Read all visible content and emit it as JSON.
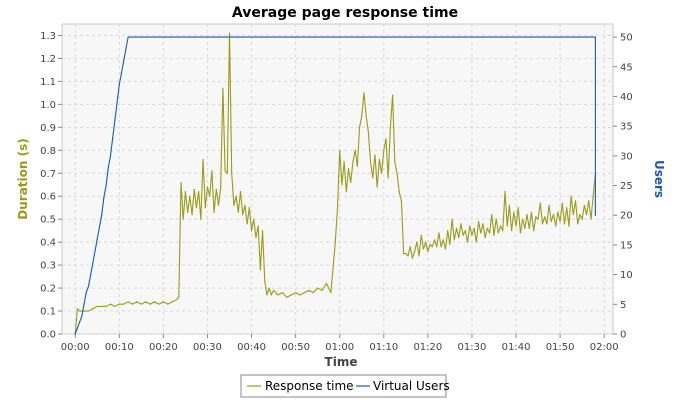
{
  "chart_data": {
    "type": "line",
    "title": "Average page response time",
    "xlabel": "Time",
    "ylabel": "Duration (s)",
    "y2label": "Users",
    "x_ticks": [
      "00:00",
      "00:10",
      "00:20",
      "00:30",
      "00:40",
      "00:50",
      "01:00",
      "01:10",
      "01:20",
      "01:30",
      "01:40",
      "01:50",
      "02:00"
    ],
    "xlim_minutes": [
      -3,
      122
    ],
    "ylim": [
      0,
      1.35
    ],
    "y_ticks": [
      "0.0",
      "0.1",
      "0.2",
      "0.3",
      "0.4",
      "0.5",
      "0.6",
      "0.7",
      "0.8",
      "0.9",
      "1.0",
      "1.1",
      "1.2",
      "1.3"
    ],
    "y2lim": [
      0,
      52.2
    ],
    "y2_ticks": [
      "0",
      "5",
      "10",
      "15",
      "20",
      "25",
      "30",
      "35",
      "40",
      "45",
      "50"
    ],
    "grid": true,
    "legend_position": "bottom",
    "series": [
      {
        "name": "Response time",
        "axis": "left",
        "color": "#9a9a1a",
        "points": [
          [
            0.0,
            0.0
          ],
          [
            0.5,
            0.11
          ],
          [
            1,
            0.1
          ],
          [
            2,
            0.1
          ],
          [
            3,
            0.1
          ],
          [
            4,
            0.11
          ],
          [
            5,
            0.12
          ],
          [
            6,
            0.12
          ],
          [
            7,
            0.12
          ],
          [
            8,
            0.13
          ],
          [
            9,
            0.12
          ],
          [
            10,
            0.13
          ],
          [
            11,
            0.13
          ],
          [
            12,
            0.14
          ],
          [
            13,
            0.13
          ],
          [
            14,
            0.14
          ],
          [
            15,
            0.13
          ],
          [
            16,
            0.14
          ],
          [
            17,
            0.13
          ],
          [
            18,
            0.14
          ],
          [
            19,
            0.13
          ],
          [
            20,
            0.14
          ],
          [
            21,
            0.13
          ],
          [
            22,
            0.14
          ],
          [
            23,
            0.15
          ],
          [
            23.5,
            0.16
          ],
          [
            24,
            0.66
          ],
          [
            24.5,
            0.5
          ],
          [
            25,
            0.62
          ],
          [
            25.5,
            0.53
          ],
          [
            26,
            0.6
          ],
          [
            26.5,
            0.52
          ],
          [
            27,
            0.63
          ],
          [
            27.5,
            0.55
          ],
          [
            28,
            0.62
          ],
          [
            28.5,
            0.5
          ],
          [
            29,
            0.76
          ],
          [
            29.5,
            0.55
          ],
          [
            30,
            0.64
          ],
          [
            30.5,
            0.6
          ],
          [
            31,
            0.71
          ],
          [
            31.5,
            0.53
          ],
          [
            32,
            0.63
          ],
          [
            32.5,
            0.56
          ],
          [
            33,
            0.64
          ],
          [
            33.5,
            1.07
          ],
          [
            34,
            0.71
          ],
          [
            34.5,
            0.7
          ],
          [
            35,
            1.31
          ],
          [
            35.5,
            0.7
          ],
          [
            36,
            0.56
          ],
          [
            36.5,
            0.6
          ],
          [
            37,
            0.53
          ],
          [
            37.5,
            0.62
          ],
          [
            38,
            0.52
          ],
          [
            38.5,
            0.56
          ],
          [
            39,
            0.48
          ],
          [
            39.5,
            0.55
          ],
          [
            40,
            0.45
          ],
          [
            40.5,
            0.5
          ],
          [
            41,
            0.42
          ],
          [
            41.5,
            0.47
          ],
          [
            42,
            0.28
          ],
          [
            42.5,
            0.45
          ],
          [
            43,
            0.23
          ],
          [
            43.5,
            0.17
          ],
          [
            44,
            0.2
          ],
          [
            44.5,
            0.17
          ],
          [
            45,
            0.19
          ],
          [
            46,
            0.17
          ],
          [
            47,
            0.18
          ],
          [
            48,
            0.16
          ],
          [
            49,
            0.17
          ],
          [
            50,
            0.18
          ],
          [
            51,
            0.17
          ],
          [
            52,
            0.18
          ],
          [
            53,
            0.19
          ],
          [
            54,
            0.18
          ],
          [
            55,
            0.2
          ],
          [
            56,
            0.19
          ],
          [
            57,
            0.22
          ],
          [
            57.5,
            0.2
          ],
          [
            58,
            0.18
          ],
          [
            59,
            0.4
          ],
          [
            59.5,
            0.55
          ],
          [
            60,
            0.8
          ],
          [
            60.5,
            0.65
          ],
          [
            61,
            0.75
          ],
          [
            61.5,
            0.62
          ],
          [
            62,
            0.72
          ],
          [
            62.5,
            0.66
          ],
          [
            63,
            0.75
          ],
          [
            63.5,
            0.8
          ],
          [
            64,
            0.73
          ],
          [
            64.5,
            0.9
          ],
          [
            65,
            0.95
          ],
          [
            65.5,
            1.05
          ],
          [
            66,
            0.95
          ],
          [
            66.5,
            0.88
          ],
          [
            67,
            0.75
          ],
          [
            67.5,
            0.68
          ],
          [
            68,
            0.78
          ],
          [
            68.5,
            0.64
          ],
          [
            69,
            0.76
          ],
          [
            69.5,
            0.7
          ],
          [
            70,
            0.8
          ],
          [
            70.5,
            0.85
          ],
          [
            71,
            0.68
          ],
          [
            71.5,
            0.9
          ],
          [
            72,
            1.04
          ],
          [
            72.5,
            0.75
          ],
          [
            73,
            0.7
          ],
          [
            73.5,
            0.62
          ],
          [
            74,
            0.58
          ],
          [
            74.5,
            0.35
          ],
          [
            75,
            0.35
          ],
          [
            75.5,
            0.34
          ],
          [
            76,
            0.38
          ],
          [
            76.5,
            0.33
          ],
          [
            77,
            0.36
          ],
          [
            77.5,
            0.4
          ],
          [
            78,
            0.34
          ],
          [
            78.5,
            0.43
          ],
          [
            79,
            0.37
          ],
          [
            79.5,
            0.4
          ],
          [
            80,
            0.36
          ],
          [
            80.5,
            0.39
          ],
          [
            81,
            0.38
          ],
          [
            81.5,
            0.41
          ],
          [
            82,
            0.38
          ],
          [
            82.5,
            0.44
          ],
          [
            83,
            0.38
          ],
          [
            83.5,
            0.41
          ],
          [
            84,
            0.37
          ],
          [
            84.5,
            0.45
          ],
          [
            85,
            0.39
          ],
          [
            85.5,
            0.5
          ],
          [
            86,
            0.41
          ],
          [
            86.5,
            0.46
          ],
          [
            87,
            0.42
          ],
          [
            87.5,
            0.48
          ],
          [
            88,
            0.43
          ],
          [
            88.5,
            0.45
          ],
          [
            89,
            0.4
          ],
          [
            89.5,
            0.47
          ],
          [
            90,
            0.43
          ],
          [
            90.5,
            0.46
          ],
          [
            91,
            0.4
          ],
          [
            91.5,
            0.49
          ],
          [
            92,
            0.44
          ],
          [
            92.5,
            0.48
          ],
          [
            93,
            0.42
          ],
          [
            93.5,
            0.46
          ],
          [
            94,
            0.44
          ],
          [
            94.5,
            0.52
          ],
          [
            95,
            0.43
          ],
          [
            95.5,
            0.5
          ],
          [
            96,
            0.44
          ],
          [
            96.5,
            0.47
          ],
          [
            97,
            0.45
          ],
          [
            97.5,
            0.62
          ],
          [
            98,
            0.47
          ],
          [
            98.5,
            0.56
          ],
          [
            99,
            0.45
          ],
          [
            99.5,
            0.53
          ],
          [
            100,
            0.47
          ],
          [
            100.5,
            0.55
          ],
          [
            101,
            0.44
          ],
          [
            101.5,
            0.5
          ],
          [
            102,
            0.46
          ],
          [
            102.5,
            0.52
          ],
          [
            103,
            0.46
          ],
          [
            103.5,
            0.53
          ],
          [
            104,
            0.45
          ],
          [
            104.5,
            0.51
          ],
          [
            105,
            0.5
          ],
          [
            105.5,
            0.57
          ],
          [
            106,
            0.48
          ],
          [
            106.5,
            0.51
          ],
          [
            107,
            0.48
          ],
          [
            107.5,
            0.56
          ],
          [
            108,
            0.49
          ],
          [
            108.5,
            0.52
          ],
          [
            109,
            0.47
          ],
          [
            109.5,
            0.53
          ],
          [
            110,
            0.49
          ],
          [
            110.5,
            0.57
          ],
          [
            111,
            0.48
          ],
          [
            111.5,
            0.55
          ],
          [
            112,
            0.47
          ],
          [
            112.5,
            0.6
          ],
          [
            113,
            0.52
          ],
          [
            113.5,
            0.58
          ],
          [
            114,
            0.48
          ],
          [
            114.5,
            0.52
          ],
          [
            115,
            0.5
          ],
          [
            115.5,
            0.56
          ],
          [
            116,
            0.52
          ],
          [
            116.5,
            0.58
          ],
          [
            117,
            0.5
          ],
          [
            117.5,
            0.6
          ],
          [
            118,
            0.7
          ]
        ]
      },
      {
        "name": "Virtual Users",
        "axis": "right",
        "color": "#1a5aa8",
        "points": [
          [
            0,
            0
          ],
          [
            0.5,
            1
          ],
          [
            1,
            2
          ],
          [
            1.5,
            3
          ],
          [
            2,
            5
          ],
          [
            2.5,
            7
          ],
          [
            3,
            8
          ],
          [
            3.5,
            10
          ],
          [
            4,
            12
          ],
          [
            4.5,
            14
          ],
          [
            5,
            16
          ],
          [
            5.5,
            18
          ],
          [
            6,
            20
          ],
          [
            6.5,
            23
          ],
          [
            7,
            25
          ],
          [
            7.5,
            28
          ],
          [
            8,
            30
          ],
          [
            8.5,
            33
          ],
          [
            9,
            36
          ],
          [
            9.5,
            39
          ],
          [
            10,
            42
          ],
          [
            10.5,
            44
          ],
          [
            11,
            46
          ],
          [
            11.5,
            48
          ],
          [
            12,
            50
          ],
          [
            118,
            50
          ],
          [
            118,
            20
          ]
        ]
      }
    ]
  }
}
